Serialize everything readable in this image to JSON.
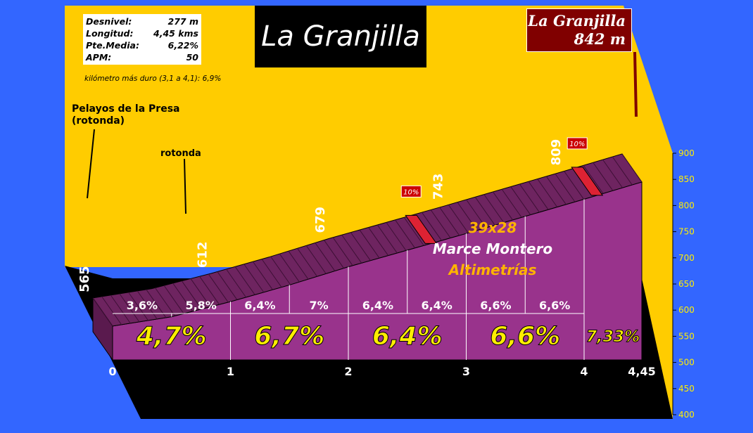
{
  "title": "La Granjilla",
  "summit": {
    "name": "La Granjilla",
    "altitude": "842 m"
  },
  "info": {
    "rows": [
      {
        "label": "Desnivel:",
        "value": "277 m"
      },
      {
        "label": "Longitud:",
        "value": "4,45 kms"
      },
      {
        "label": "Pte.Media:",
        "value": "6,22%"
      },
      {
        "label": "APM:",
        "value": "50"
      }
    ],
    "hardest_km": "kilómetro más duro (3,1 a 4,1):  6,9%"
  },
  "labels": {
    "start": [
      "Pelayos de la Presa",
      "(rotonda)"
    ],
    "rotonda": "rotonda"
  },
  "credit": {
    "gear": "39x28",
    "author": "Marce Montero",
    "brand": "Altimetrías"
  },
  "colors": {
    "background": "#3366ff",
    "wall": "#ffcc00",
    "profile_face": "#99338c",
    "profile_top": "#6e2460",
    "floor": "#000000",
    "steep_marker": "#dd2233",
    "big_pct": "#ffee00"
  },
  "chart_data": {
    "type": "area",
    "title": "La Granjilla",
    "xlabel": "",
    "ylabel": "",
    "ylim": [
      400,
      900
    ],
    "xlim": [
      0,
      4.45
    ],
    "x_ticks": [
      "0",
      "1",
      "2",
      "3",
      "4",
      "4,45"
    ],
    "y_ticks": [
      "400",
      "450",
      "500",
      "550",
      "600",
      "650",
      "700",
      "750",
      "800",
      "850",
      "900"
    ],
    "grid": true,
    "profile": {
      "x": [
        0,
        0.5,
        1,
        1.5,
        2,
        2.5,
        3,
        3.5,
        4,
        4.45
      ],
      "y": [
        565,
        583,
        612,
        644,
        679,
        711,
        743,
        776,
        809,
        842
      ]
    },
    "altitude_labels": [
      {
        "x": 0,
        "text": "565"
      },
      {
        "x": 1,
        "text": "612"
      },
      {
        "x": 2,
        "text": "679"
      },
      {
        "x": 3,
        "text": "743"
      },
      {
        "x": 4,
        "text": "809"
      }
    ],
    "half_km_gradients": [
      {
        "x": 0.25,
        "text": "3,6%"
      },
      {
        "x": 0.75,
        "text": "5,8%"
      },
      {
        "x": 1.25,
        "text": "6,4%"
      },
      {
        "x": 1.75,
        "text": "7%"
      },
      {
        "x": 2.25,
        "text": "6,4%"
      },
      {
        "x": 2.75,
        "text": "6,4%"
      },
      {
        "x": 3.25,
        "text": "6,6%"
      },
      {
        "x": 3.75,
        "text": "6,6%"
      }
    ],
    "km_gradients": [
      {
        "x": 0.5,
        "text": "4,7%"
      },
      {
        "x": 1.5,
        "text": "6,7%"
      },
      {
        "x": 2.5,
        "text": "6,4%"
      },
      {
        "x": 3.5,
        "text": "6,6%"
      },
      {
        "x": 4.225,
        "text": "7,33%"
      }
    ],
    "steep_sections": [
      {
        "x": 2.7,
        "label": "10%"
      },
      {
        "x": 4.1,
        "label": "10%"
      }
    ]
  }
}
